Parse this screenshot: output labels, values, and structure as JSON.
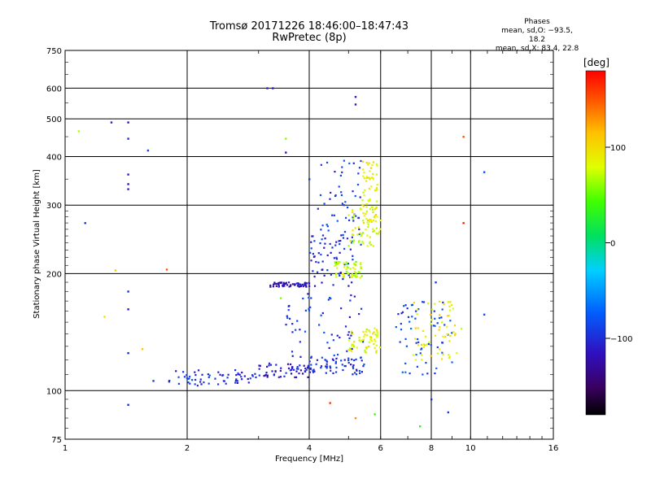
{
  "chart_data": {
    "type": "scatter",
    "title": "Tromsø 20171226 18:46:00–18:47:43",
    "subtitle": "RwPretec (8p)",
    "xlabel": "Frequency [MHz]",
    "ylabel": "Stationary phase Virtual Height [km]",
    "x_scale": "log",
    "y_scale": "log",
    "xlim": [
      1,
      16
    ],
    "ylim": [
      75,
      750
    ],
    "x_ticks": [
      1,
      2,
      4,
      6,
      8,
      10,
      16
    ],
    "x_gridlines": [
      2,
      4,
      6,
      8,
      10
    ],
    "y_ticks": [
      75,
      100,
      200,
      300,
      400,
      500,
      600,
      750
    ],
    "grid": true,
    "colorbar": {
      "label": "[deg]",
      "ticks": [
        "100",
        "0",
        "−100"
      ],
      "tick_values": [
        100,
        0,
        -100
      ],
      "range": [
        -180,
        180
      ]
    },
    "stats": {
      "heading": "Phases",
      "line1": "mean, sd,O: −93.5, 18.2",
      "line2": "mean, sd,X:  83.4, 22.8"
    },
    "series": [
      {
        "name": "O",
        "color_by_phase": true,
        "clusters": [
          {
            "x": [
              1.8,
              2.9
            ],
            "y": [
              103,
              113
            ],
            "phase": -100
          },
          {
            "x": [
              2.9,
              4.0
            ],
            "y": [
              108,
              118
            ],
            "phase": -110
          },
          {
            "x": [
              4.0,
              5.5
            ],
            "y": [
              110,
              122
            ],
            "phase": -95
          },
          {
            "x": [
              3.2,
              4.0
            ],
            "y": [
              185,
              190
            ],
            "phase": -120
          },
          {
            "x": [
              4.0,
              5.2
            ],
            "y": [
              185,
              260
            ],
            "phase": -100
          },
          {
            "x": [
              4.2,
              5.4
            ],
            "y": [
              210,
              400
            ],
            "phase": -90
          },
          {
            "x": [
              3.5,
              5.5
            ],
            "y": [
              120,
              180
            ],
            "phase": -95
          },
          {
            "x": [
              6.5,
              9.0
            ],
            "y": [
              110,
              170
            ],
            "phase": -85
          }
        ],
        "isolated": [
          {
            "x": 1.12,
            "y": 270,
            "phase": -95
          },
          {
            "x": 1.3,
            "y": 490,
            "phase": -110
          },
          {
            "x": 1.43,
            "y": 490,
            "phase": -120
          },
          {
            "x": 1.43,
            "y": 445,
            "phase": -100
          },
          {
            "x": 1.43,
            "y": 360,
            "phase": -110
          },
          {
            "x": 1.43,
            "y": 340,
            "phase": -115
          },
          {
            "x": 1.43,
            "y": 330,
            "phase": -105
          },
          {
            "x": 1.43,
            "y": 180,
            "phase": -100
          },
          {
            "x": 1.43,
            "y": 162,
            "phase": -110
          },
          {
            "x": 1.43,
            "y": 125,
            "phase": -100
          },
          {
            "x": 1.43,
            "y": 92,
            "phase": -100
          },
          {
            "x": 1.6,
            "y": 415,
            "phase": -90
          },
          {
            "x": 1.65,
            "y": 106,
            "phase": -90
          },
          {
            "x": 3.15,
            "y": 600,
            "phase": -110
          },
          {
            "x": 3.25,
            "y": 600,
            "phase": -120
          },
          {
            "x": 5.2,
            "y": 570,
            "phase": -110
          },
          {
            "x": 5.2,
            "y": 545,
            "phase": -115
          },
          {
            "x": 4.0,
            "y": 350,
            "phase": -95
          },
          {
            "x": 3.5,
            "y": 410,
            "phase": -120
          },
          {
            "x": 8.2,
            "y": 190,
            "phase": -90
          },
          {
            "x": 10.8,
            "y": 365,
            "phase": -80
          },
          {
            "x": 10.8,
            "y": 157,
            "phase": -80
          },
          {
            "x": 8.8,
            "y": 88,
            "phase": -90
          },
          {
            "x": 8.0,
            "y": 95,
            "phase": -100
          }
        ]
      },
      {
        "name": "X",
        "color_by_phase": true,
        "clusters": [
          {
            "x": [
              5.0,
              6.0
            ],
            "y": [
              235,
              300
            ],
            "phase": 80
          },
          {
            "x": [
              5.4,
              5.9
            ],
            "y": [
              270,
              390
            ],
            "phase": 90
          },
          {
            "x": [
              5.0,
              6.0
            ],
            "y": [
              125,
              145
            ],
            "phase": 85
          },
          {
            "x": [
              7.2,
              9.5
            ],
            "y": [
              120,
              170
            ],
            "phase": 90
          },
          {
            "x": [
              4.6,
              5.4
            ],
            "y": [
              195,
              215
            ],
            "phase": 70
          }
        ],
        "isolated": [
          {
            "x": 1.08,
            "y": 465,
            "phase": 70
          },
          {
            "x": 1.25,
            "y": 155,
            "phase": 95
          },
          {
            "x": 1.33,
            "y": 204,
            "phase": 110
          },
          {
            "x": 1.55,
            "y": 128,
            "phase": 110
          },
          {
            "x": 1.78,
            "y": 205,
            "phase": 150
          },
          {
            "x": 9.6,
            "y": 450,
            "phase": 150
          },
          {
            "x": 9.6,
            "y": 270,
            "phase": 170
          },
          {
            "x": 3.5,
            "y": 445,
            "phase": 60
          },
          {
            "x": 3.4,
            "y": 173,
            "phase": 60
          },
          {
            "x": 7.5,
            "y": 81,
            "phase": 30
          },
          {
            "x": 5.2,
            "y": 85,
            "phase": 130
          },
          {
            "x": 5.8,
            "y": 87,
            "phase": 40
          },
          {
            "x": 4.5,
            "y": 93,
            "phase": 160
          }
        ]
      }
    ]
  }
}
